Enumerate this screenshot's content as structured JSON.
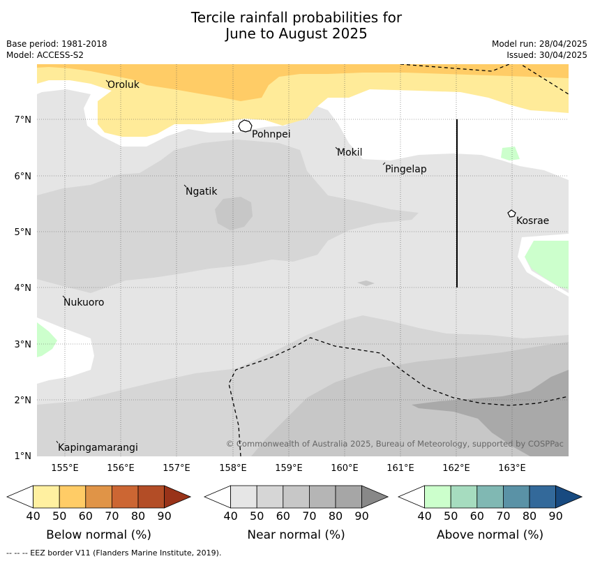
{
  "title": {
    "line1": "Tercile rainfall probabilities for",
    "line2": "June to August 2025"
  },
  "meta": {
    "base_period": "Base period: 1981-2018",
    "model": "Model: ACCESS-S2",
    "model_run": "Model run: 28/04/2025",
    "issued": "Issued: 30/04/2025"
  },
  "map": {
    "lon_labels": [
      "155°E",
      "156°E",
      "157°E",
      "158°E",
      "159°E",
      "160°E",
      "161°E",
      "162°E",
      "163°E"
    ],
    "lat_labels": [
      "7°N",
      "6°N",
      "5°N",
      "4°N",
      "3°N",
      "2°N",
      "1°N"
    ],
    "places": [
      "Oroluk",
      "Pohnpei",
      "Mokil",
      "Pingelap",
      "Ngatik",
      "Kosrae",
      "Nukuoro",
      "Kapingamarangi"
    ],
    "copyright": "© Commonwealth of Australia 2025, Bureau of Meteorology, supported by COSPPac",
    "colors": {
      "background": "#ffffff",
      "near_40": "#e5e5e5",
      "near_50": "#d6d6d6",
      "near_60": "#c7c7c7",
      "near_70": "#a9a9a9",
      "below_40": "#ffeb99",
      "below_50": "#ffcc66",
      "above_40": "#ccffcc"
    }
  },
  "legends": [
    {
      "caption": "Below normal (%)",
      "ticks": [
        "40",
        "50",
        "60",
        "70",
        "80",
        "90"
      ],
      "colors": [
        "#ffffff",
        "#fff0a0",
        "#ffcc66",
        "#e09447",
        "#cc6633",
        "#b34d26",
        "#993319"
      ]
    },
    {
      "caption": "Near normal (%)",
      "ticks": [
        "40",
        "50",
        "60",
        "70",
        "80",
        "90"
      ],
      "colors": [
        "#ffffff",
        "#e6e6e6",
        "#d6d6d6",
        "#c7c7c7",
        "#b5b5b5",
        "#a6a6a6",
        "#888888"
      ]
    },
    {
      "caption": "Above normal (%)",
      "ticks": [
        "40",
        "50",
        "60",
        "70",
        "80",
        "90"
      ],
      "colors": [
        "#ffffff",
        "#ccffcc",
        "#a6dcbf",
        "#80b8b3",
        "#5a92a6",
        "#33699a",
        "#184a80"
      ]
    }
  ],
  "footer": "--  --  -- EEZ border V11 (Flanders Marine Institute, 2019)."
}
